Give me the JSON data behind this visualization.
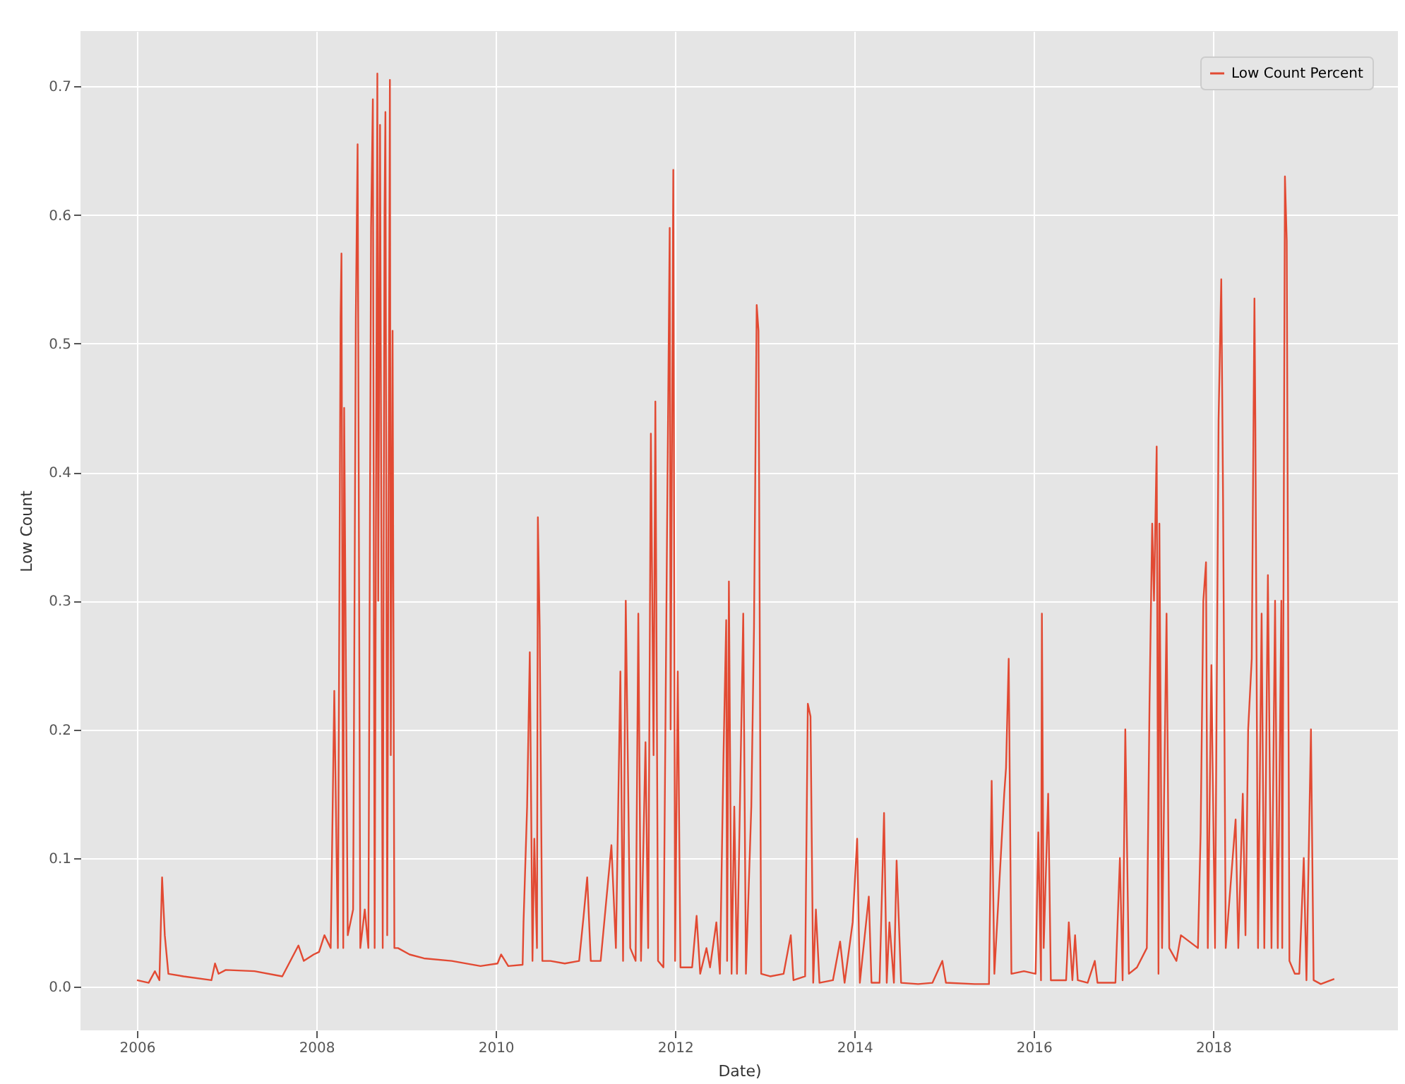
{
  "chart_data": {
    "type": "line",
    "xlabel": "Date)",
    "ylabel": "Low Count",
    "legend": "top right",
    "grid": true,
    "xlim": [
      2005.37,
      2020.06
    ],
    "xticks": [
      2006,
      2008,
      2010,
      2012,
      2014,
      2016,
      2018
    ],
    "ylim": [
      -0.034,
      0.743
    ],
    "yticks": [
      {
        "value": 0,
        "label": "0.0"
      },
      {
        "value": 0.1,
        "label": "0.1"
      },
      {
        "value": 0.2,
        "label": "0.2"
      },
      {
        "value": 0.3,
        "label": "0.3"
      },
      {
        "value": 0.4,
        "label": "0.4"
      },
      {
        "value": 0.5,
        "label": "0.5"
      },
      {
        "value": 0.6,
        "label": "0.6"
      },
      {
        "value": 0.7,
        "label": "0.7"
      }
    ],
    "x": [
      2006.0,
      2006.13,
      2006.2,
      2006.25,
      2006.28,
      2006.31,
      2006.35,
      2006.52,
      2006.83,
      2006.87,
      2006.91,
      2006.99,
      2007.31,
      2007.62,
      2007.8,
      2007.86,
      2007.97,
      2008.03,
      2008.09,
      2008.16,
      2008.2,
      2008.24,
      2008.27,
      2008.28,
      2008.3,
      2008.31,
      2008.35,
      2008.41,
      2008.44,
      2008.46,
      2008.49,
      2008.54,
      2008.58,
      2008.61,
      2008.63,
      2008.65,
      2008.68,
      2008.69,
      2008.71,
      2008.74,
      2008.76,
      2008.77,
      2008.79,
      2008.82,
      2008.83,
      2008.85,
      2008.87,
      2008.91,
      2009.04,
      2009.2,
      2009.51,
      2009.83,
      2010.02,
      2010.06,
      2010.14,
      2010.3,
      2010.31,
      2010.35,
      2010.38,
      2010.41,
      2010.43,
      2010.46,
      2010.47,
      2010.49,
      2010.52,
      2010.61,
      2010.77,
      2010.93,
      2010.98,
      2011.02,
      2011.06,
      2011.17,
      2011.29,
      2011.34,
      2011.39,
      2011.42,
      2011.45,
      2011.5,
      2011.56,
      2011.59,
      2011.62,
      2011.67,
      2011.7,
      2011.73,
      2011.76,
      2011.78,
      2011.81,
      2011.87,
      2011.91,
      2011.94,
      2011.95,
      2011.98,
      2012.0,
      2012.03,
      2012.06,
      2012.19,
      2012.24,
      2012.28,
      2012.35,
      2012.39,
      2012.46,
      2012.5,
      2012.54,
      2012.57,
      2012.58,
      2012.6,
      2012.63,
      2012.66,
      2012.69,
      2012.76,
      2012.79,
      2012.85,
      2012.88,
      2012.91,
      2012.93,
      2012.96,
      2013.06,
      2013.21,
      2013.29,
      2013.32,
      2013.45,
      2013.48,
      2013.51,
      2013.54,
      2013.57,
      2013.61,
      2013.76,
      2013.84,
      2013.89,
      2013.98,
      2014.03,
      2014.06,
      2014.16,
      2014.19,
      2014.28,
      2014.33,
      2014.36,
      2014.39,
      2014.44,
      2014.47,
      2014.52,
      2014.71,
      2014.87,
      2014.98,
      2015.02,
      2015.34,
      2015.5,
      2015.53,
      2015.56,
      2015.67,
      2015.69,
      2015.72,
      2015.75,
      2015.89,
      2016.02,
      2016.05,
      2016.08,
      2016.09,
      2016.11,
      2016.16,
      2016.19,
      2016.36,
      2016.39,
      2016.43,
      2016.46,
      2016.49,
      2016.6,
      2016.68,
      2016.71,
      2016.79,
      2016.91,
      2016.96,
      2016.99,
      2017.02,
      2017.06,
      2017.15,
      2017.26,
      2017.29,
      2017.32,
      2017.34,
      2017.37,
      2017.39,
      2017.4,
      2017.43,
      2017.48,
      2017.51,
      2017.59,
      2017.64,
      2017.83,
      2017.86,
      2017.89,
      2017.92,
      2017.94,
      2017.98,
      2018.02,
      2018.06,
      2018.09,
      2018.11,
      2018.14,
      2018.25,
      2018.28,
      2018.33,
      2018.36,
      2018.39,
      2018.43,
      2018.46,
      2018.47,
      2018.5,
      2018.54,
      2018.57,
      2018.61,
      2018.65,
      2018.69,
      2018.72,
      2018.76,
      2018.77,
      2018.8,
      2018.82,
      2018.85,
      2018.91,
      2018.96,
      2019.01,
      2019.04,
      2019.09,
      2019.12,
      2019.2,
      2019.35
    ],
    "series": [
      {
        "name": "Low Count Percent",
        "color": "#e24a33",
        "values": [
          0.005,
          0.003,
          0.012,
          0.005,
          0.085,
          0.04,
          0.01,
          0.008,
          0.005,
          0.018,
          0.01,
          0.013,
          0.012,
          0.008,
          0.032,
          0.02,
          0.025,
          0.027,
          0.04,
          0.03,
          0.23,
          0.03,
          0.52,
          0.57,
          0.03,
          0.45,
          0.04,
          0.06,
          0.52,
          0.655,
          0.03,
          0.06,
          0.03,
          0.59,
          0.69,
          0.03,
          0.71,
          0.3,
          0.67,
          0.03,
          0.6,
          0.68,
          0.04,
          0.705,
          0.18,
          0.51,
          0.03,
          0.03,
          0.025,
          0.022,
          0.02,
          0.016,
          0.018,
          0.025,
          0.016,
          0.017,
          0.05,
          0.14,
          0.26,
          0.02,
          0.115,
          0.03,
          0.365,
          0.28,
          0.02,
          0.02,
          0.018,
          0.02,
          0.055,
          0.085,
          0.02,
          0.02,
          0.11,
          0.03,
          0.245,
          0.02,
          0.3,
          0.03,
          0.02,
          0.29,
          0.02,
          0.19,
          0.03,
          0.43,
          0.18,
          0.455,
          0.02,
          0.015,
          0.35,
          0.59,
          0.2,
          0.635,
          0.02,
          0.245,
          0.015,
          0.015,
          0.055,
          0.01,
          0.03,
          0.015,
          0.05,
          0.01,
          0.18,
          0.285,
          0.02,
          0.315,
          0.01,
          0.14,
          0.01,
          0.29,
          0.01,
          0.14,
          0.28,
          0.53,
          0.51,
          0.01,
          0.008,
          0.01,
          0.04,
          0.005,
          0.008,
          0.22,
          0.21,
          0.003,
          0.06,
          0.003,
          0.005,
          0.035,
          0.003,
          0.05,
          0.115,
          0.003,
          0.07,
          0.003,
          0.003,
          0.135,
          0.003,
          0.05,
          0.003,
          0.098,
          0.003,
          0.002,
          0.003,
          0.02,
          0.003,
          0.002,
          0.002,
          0.16,
          0.01,
          0.15,
          0.17,
          0.255,
          0.01,
          0.012,
          0.01,
          0.12,
          0.005,
          0.29,
          0.03,
          0.15,
          0.005,
          0.005,
          0.05,
          0.005,
          0.04,
          0.005,
          0.003,
          0.02,
          0.003,
          0.003,
          0.003,
          0.1,
          0.005,
          0.2,
          0.01,
          0.015,
          0.03,
          0.22,
          0.36,
          0.3,
          0.42,
          0.01,
          0.36,
          0.03,
          0.29,
          0.03,
          0.02,
          0.04,
          0.03,
          0.12,
          0.3,
          0.33,
          0.03,
          0.25,
          0.03,
          0.44,
          0.55,
          0.38,
          0.03,
          0.13,
          0.03,
          0.15,
          0.04,
          0.2,
          0.255,
          0.535,
          0.44,
          0.03,
          0.29,
          0.03,
          0.32,
          0.03,
          0.3,
          0.03,
          0.3,
          0.03,
          0.63,
          0.58,
          0.02,
          0.01,
          0.01,
          0.1,
          0.005,
          0.2,
          0.005,
          0.002,
          0.006
        ]
      }
    ]
  }
}
